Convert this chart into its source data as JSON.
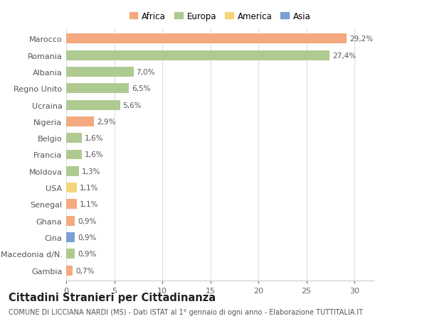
{
  "countries": [
    "Marocco",
    "Romania",
    "Albania",
    "Regno Unito",
    "Ucraina",
    "Nigeria",
    "Belgio",
    "Francia",
    "Moldova",
    "USA",
    "Senegal",
    "Ghana",
    "Cina",
    "Macedonia d/N.",
    "Gambia"
  ],
  "values": [
    29.2,
    27.4,
    7.0,
    6.5,
    5.6,
    2.9,
    1.6,
    1.6,
    1.3,
    1.1,
    1.1,
    0.9,
    0.9,
    0.9,
    0.7
  ],
  "labels": [
    "29,2%",
    "27,4%",
    "7,0%",
    "6,5%",
    "5,6%",
    "2,9%",
    "1,6%",
    "1,6%",
    "1,3%",
    "1,1%",
    "1,1%",
    "0,9%",
    "0,9%",
    "0,9%",
    "0,7%"
  ],
  "continents": [
    "Africa",
    "Europa",
    "Europa",
    "Europa",
    "Europa",
    "Africa",
    "Europa",
    "Europa",
    "Europa",
    "America",
    "Africa",
    "Africa",
    "Asia",
    "Europa",
    "Africa"
  ],
  "continent_colors": {
    "Africa": "#F4A97F",
    "Europa": "#AECA91",
    "America": "#F5D57B",
    "Asia": "#7B9FD4"
  },
  "legend_order": [
    "Africa",
    "Europa",
    "America",
    "Asia"
  ],
  "title": "Cittadini Stranieri per Cittadinanza",
  "subtitle": "COMUNE DI LICCIANA NARDI (MS) - Dati ISTAT al 1° gennaio di ogni anno - Elaborazione TUTTITALIA.IT",
  "xlim": [
    0,
    32
  ],
  "xticks": [
    0,
    5,
    10,
    15,
    20,
    25,
    30
  ],
  "background_color": "#ffffff",
  "grid_color": "#e0e0e0",
  "bar_height": 0.6,
  "title_fontsize": 10.5,
  "subtitle_fontsize": 7,
  "label_fontsize": 7.5,
  "tick_fontsize": 8,
  "legend_fontsize": 8.5
}
